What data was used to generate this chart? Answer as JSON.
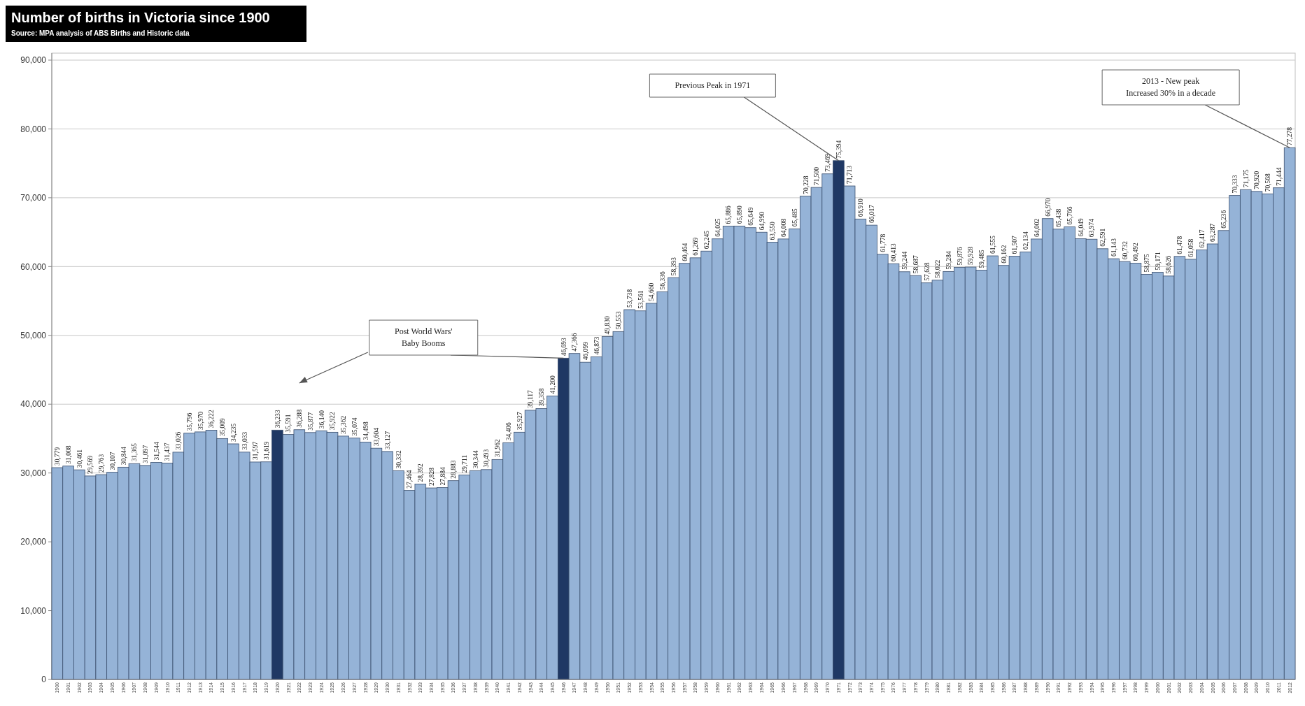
{
  "chart_data": {
    "type": "bar",
    "title": "Number of births in Victoria since 1900",
    "subtitle": "Source: MPA analysis of ABS Births and Historic data",
    "categories": [
      "1900",
      "1901",
      "1902",
      "1903",
      "1904",
      "1905",
      "1906",
      "1907",
      "1908",
      "1909",
      "1910",
      "1911",
      "1912",
      "1913",
      "1914",
      "1915",
      "1916",
      "1917",
      "1918",
      "1919",
      "1920",
      "1921",
      "1922",
      "1923",
      "1924",
      "1925",
      "1926",
      "1927",
      "1928",
      "1929",
      "1930",
      "1931",
      "1932",
      "1933",
      "1934",
      "1935",
      "1936",
      "1937",
      "1938",
      "1939",
      "1940",
      "1941",
      "1942",
      "1943",
      "1944",
      "1945",
      "1946",
      "1947",
      "1948",
      "1949",
      "1950",
      "1951",
      "1952",
      "1953",
      "1954",
      "1955",
      "1956",
      "1957",
      "1958",
      "1959",
      "1960",
      "1961",
      "1962",
      "1963",
      "1964",
      "1965",
      "1966",
      "1967",
      "1968",
      "1969",
      "1970",
      "1971",
      "1972",
      "1973",
      "1974",
      "1975",
      "1976",
      "1977",
      "1978",
      "1979",
      "1980",
      "1981",
      "1982",
      "1983",
      "1984",
      "1985",
      "1986",
      "1987",
      "1988",
      "1989",
      "1990",
      "1991",
      "1992",
      "1993",
      "1994",
      "1995",
      "1996",
      "1997",
      "1998",
      "1999",
      "2000",
      "2001",
      "2002",
      "2003",
      "2004",
      "2005",
      "2006",
      "2007",
      "2008",
      "2009",
      "2010",
      "2011",
      "2012"
    ],
    "values": [
      30779,
      31008,
      30461,
      29569,
      29763,
      30107,
      30844,
      31365,
      31097,
      31544,
      31437,
      33026,
      35796,
      35970,
      36222,
      35009,
      34235,
      33033,
      31597,
      31619,
      36233,
      35591,
      36288,
      35877,
      36140,
      35922,
      35362,
      35074,
      34498,
      33604,
      33127,
      30332,
      27464,
      28392,
      27828,
      27884,
      28883,
      29711,
      30344,
      30493,
      31962,
      34406,
      35927,
      39117,
      39358,
      41200,
      46693,
      47366,
      46099,
      46873,
      49830,
      50553,
      53738,
      53561,
      54660,
      56336,
      58393,
      60464,
      61269,
      62245,
      64025,
      65886,
      65890,
      65649,
      64990,
      63550,
      64008,
      65485,
      70228,
      71500,
      73469,
      75394,
      71713,
      66910,
      66017,
      61778,
      60413,
      59244,
      58687,
      57628,
      58022,
      59284,
      59876,
      59928,
      59485,
      61555,
      60162,
      61507,
      62134,
      64002,
      66970,
      65438,
      65766,
      64049,
      63974,
      62591,
      61143,
      60732,
      60492,
      58875,
      59171,
      58626,
      61478,
      61058,
      62417,
      63287,
      65236,
      70333,
      71175,
      70920,
      70568,
      71444,
      77278
    ],
    "colors": [
      "#95b3d7",
      "#95b3d7",
      "#95b3d7",
      "#95b3d7",
      "#95b3d7",
      "#95b3d7",
      "#95b3d7",
      "#95b3d7",
      "#95b3d7",
      "#95b3d7",
      "#95b3d7",
      "#95b3d7",
      "#95b3d7",
      "#95b3d7",
      "#95b3d7",
      "#95b3d7",
      "#95b3d7",
      "#95b3d7",
      "#95b3d7",
      "#95b3d7",
      "#1f3864",
      "#95b3d7",
      "#95b3d7",
      "#95b3d7",
      "#95b3d7",
      "#95b3d7",
      "#95b3d7",
      "#95b3d7",
      "#95b3d7",
      "#95b3d7",
      "#95b3d7",
      "#95b3d7",
      "#95b3d7",
      "#95b3d7",
      "#95b3d7",
      "#95b3d7",
      "#95b3d7",
      "#95b3d7",
      "#95b3d7",
      "#95b3d7",
      "#95b3d7",
      "#95b3d7",
      "#95b3d7",
      "#95b3d7",
      "#95b3d7",
      "#95b3d7",
      "#1f3864",
      "#95b3d7",
      "#95b3d7",
      "#95b3d7",
      "#95b3d7",
      "#95b3d7",
      "#95b3d7",
      "#95b3d7",
      "#95b3d7",
      "#95b3d7",
      "#95b3d7",
      "#95b3d7",
      "#95b3d7",
      "#95b3d7",
      "#95b3d7",
      "#95b3d7",
      "#95b3d7",
      "#95b3d7",
      "#95b3d7",
      "#95b3d7",
      "#95b3d7",
      "#95b3d7",
      "#95b3d7",
      "#95b3d7",
      "#95b3d7",
      "#1f3864",
      "#95b3d7",
      "#95b3d7",
      "#95b3d7",
      "#95b3d7",
      "#95b3d7",
      "#95b3d7",
      "#95b3d7",
      "#95b3d7",
      "#95b3d7",
      "#95b3d7",
      "#95b3d7",
      "#95b3d7",
      "#95b3d7",
      "#95b3d7",
      "#95b3d7",
      "#95b3d7",
      "#95b3d7",
      "#95b3d7",
      "#95b3d7",
      "#95b3d7",
      "#95b3d7",
      "#95b3d7",
      "#95b3d7",
      "#95b3d7",
      "#95b3d7",
      "#95b3d7",
      "#95b3d7",
      "#95b3d7",
      "#95b3d7",
      "#95b3d7",
      "#95b3d7",
      "#95b3d7",
      "#95b3d7",
      "#95b3d7",
      "#95b3d7",
      "#95b3d7",
      "#95b3d7",
      "#95b3d7",
      "#95b3d7",
      "#95b3d7",
      "#95b3d7"
    ],
    "ylim": [
      0,
      90000
    ],
    "yticks": [
      0,
      {
        "value": 10000,
        "label": "10,000"
      },
      {
        "value": 20000,
        "label": "20,000"
      },
      {
        "value": 30000,
        "label": "30,000"
      },
      {
        "value": 40000,
        "label": "40,000"
      },
      {
        "value": 50000,
        "label": "50,000"
      },
      {
        "value": 60000,
        "label": "60,000"
      },
      {
        "value": 70000,
        "label": "70,000"
      },
      {
        "value": 80000,
        "label": "80,000"
      },
      {
        "value": 90000,
        "label": "90,000"
      }
    ],
    "grid": "y",
    "value_labels": [
      "30,779",
      "31,008",
      "30,461",
      "29,569",
      "29,763",
      "30,107",
      "30,844",
      "31,365",
      "31,097",
      "31,544",
      "31,437",
      "33,026",
      "35,796",
      "35,970",
      "36,222",
      "35,009",
      "34,235",
      "33,033",
      "31,597",
      "31,619",
      "36,233",
      "35,591",
      "36,288",
      "35,877",
      "36,140",
      "35,922",
      "35,362",
      "35,074",
      "34,498",
      "33,604",
      "33,127",
      "30,332",
      "27,464",
      "28,392",
      "27,828",
      "27,884",
      "28,883",
      "29,711",
      "30,344",
      "30,493",
      "31,962",
      "34,406",
      "35,927",
      "39,117",
      "39,358",
      "41,200",
      "46,693",
      "47,366",
      "46,099",
      "46,873",
      "49,830",
      "50,553",
      "53,738",
      "53,561",
      "54,660",
      "56,336",
      "58,393",
      "60,464",
      "61,269",
      "62,245",
      "64,025",
      "65,886",
      "65,890",
      "65,649",
      "64,990",
      "63,550",
      "64,008",
      "65,485",
      "70,228",
      "71,500",
      "73,469",
      "75,394",
      "71,713",
      "66,910",
      "66,017",
      "61,778",
      "60,413",
      "59,244",
      "58,687",
      "57,628",
      "58,022",
      "59,284",
      "59,876",
      "59,928",
      "59,485",
      "61,555",
      "60,162",
      "61,507",
      "62,134",
      "64,002",
      "66,970",
      "65,438",
      "65,766",
      "64,049",
      "63,974",
      "62,591",
      "61,143",
      "60,732",
      "60,492",
      "58,875",
      "59,171",
      "58,626",
      "61,478",
      "61,058",
      "62,417",
      "63,287",
      "65,236",
      "70,333",
      "71,175",
      "70,920",
      "70,568",
      "71,444",
      "77,278"
    ],
    "annotations": [
      {
        "text": "Post World Wars'\nBaby Booms",
        "x": "1946",
        "y": 46693
      },
      {
        "text": "Previous Peak in 1971",
        "x": "1971",
        "y": 75394
      },
      {
        "text": "2013 - New peak\nIncreased 30% in a decade",
        "x": "2012",
        "y": 77278
      }
    ]
  }
}
